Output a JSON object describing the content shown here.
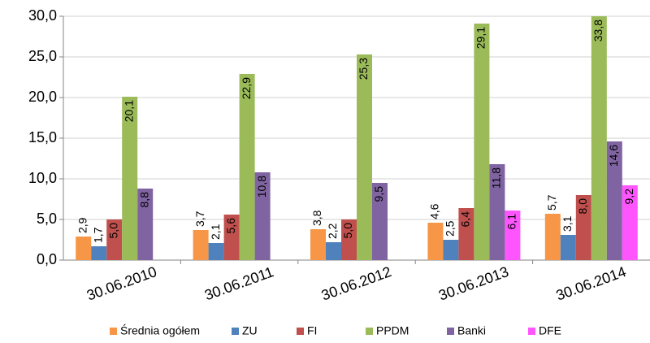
{
  "chart_data": {
    "type": "bar",
    "categories": [
      "30.06.2010",
      "30.06.2011",
      "30.06.2012",
      "30.06.2013",
      "30.06.2014"
    ],
    "series": [
      {
        "name": "Średnia ogółem",
        "color": "#f79646",
        "values": [
          2.9,
          3.7,
          3.8,
          4.6,
          5.7
        ],
        "value_labels": [
          "2,9",
          "3,7",
          "3,8",
          "4,6",
          "5,7"
        ]
      },
      {
        "name": "ZU",
        "color": "#4f81bd",
        "values": [
          1.7,
          2.1,
          2.2,
          2.5,
          3.1
        ],
        "value_labels": [
          "1,7",
          "2,1",
          "2,2",
          "2,5",
          "3,1"
        ]
      },
      {
        "name": "FI",
        "color": "#c0504d",
        "values": [
          5.0,
          5.6,
          5.0,
          6.4,
          8.0
        ],
        "value_labels": [
          "5,0",
          "5,6",
          "5,0",
          "6,4",
          "8,0"
        ]
      },
      {
        "name": "PPDM",
        "color": "#9bbb59",
        "values": [
          20.1,
          22.9,
          25.3,
          29.1,
          33.8
        ],
        "value_labels": [
          "20,1",
          "22,9",
          "25,3",
          "29,1",
          "33,8"
        ]
      },
      {
        "name": "Banki",
        "color": "#8064a2",
        "values": [
          8.8,
          10.8,
          9.5,
          11.8,
          14.6
        ],
        "value_labels": [
          "8,8",
          "10,8",
          "9,5",
          "11,8",
          "14,6"
        ]
      },
      {
        "name": "DFE",
        "color": "#ff55ff",
        "values": [
          null,
          null,
          null,
          6.1,
          9.2
        ],
        "value_labels": [
          null,
          null,
          null,
          "6,1",
          "9,2"
        ]
      }
    ],
    "ylim": [
      0,
      30
    ],
    "yticks": [
      {
        "value": 0,
        "label": "0,0"
      },
      {
        "value": 5,
        "label": "5,0"
      },
      {
        "value": 10,
        "label": "10,0"
      },
      {
        "value": 15,
        "label": "15,0"
      },
      {
        "value": 20,
        "label": "20,0"
      },
      {
        "value": 25,
        "label": "25,0"
      },
      {
        "value": 30,
        "label": "30,0"
      }
    ],
    "grid": true,
    "legend": "bottom"
  }
}
